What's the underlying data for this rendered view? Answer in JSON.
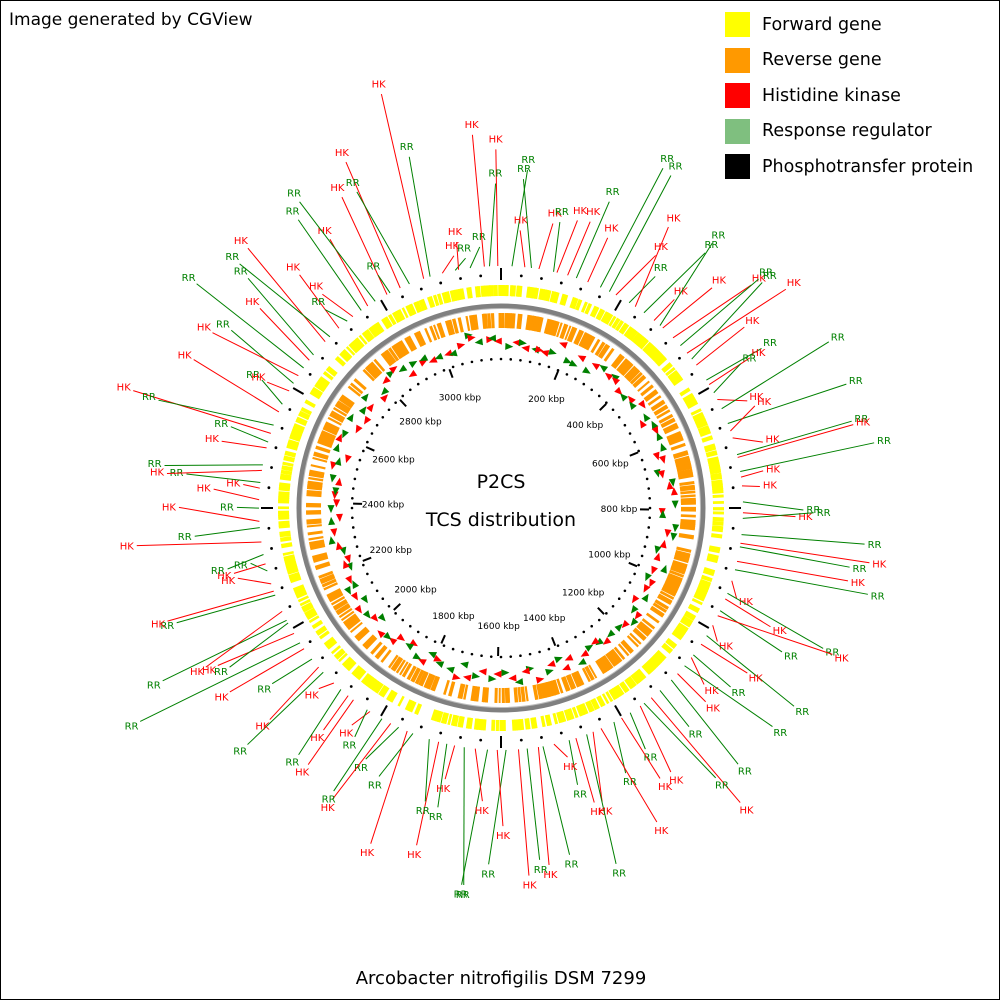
{
  "credit": "Image generated by CGView",
  "legend": [
    {
      "label": "Forward gene",
      "color": "#ffff00"
    },
    {
      "label": "Reverse gene",
      "color": "#ff9900"
    },
    {
      "label": "Histidine kinase",
      "color": "#ff0000"
    },
    {
      "label": "Response regulator",
      "color": "#7fbf7f"
    },
    {
      "label": "Phosphotransfer protein",
      "color": "#000000"
    }
  ],
  "center": {
    "line1": "P2CS",
    "line2": "TCS distribution"
  },
  "organism": "Arcobacter nitrofigilis DSM 7299",
  "map": {
    "genome_length_kbp": 3180,
    "tick_labels": [
      "200 kbp",
      "400 kbp",
      "600 kbp",
      "800 kbp",
      "1000 kbp",
      "1200 kbp",
      "1400 kbp",
      "1600 kbp",
      "1800 kbp",
      "2000 kbp",
      "2200 kbp",
      "2400 kbp",
      "2600 kbp",
      "2800 kbp",
      "3000 kbp"
    ],
    "colors": {
      "forward": "#ffff00",
      "reverse": "#ff9900",
      "hk": "#ff0000",
      "rr": "#008000",
      "backbone": "#808080",
      "ticks": "#000000"
    },
    "tcs_labels": [
      "HK",
      "RR",
      "HK",
      "RR",
      "HK",
      "RR",
      "HK",
      "HK",
      "RR",
      "HK",
      "RR",
      "RR",
      "HK",
      "RR",
      "HK",
      "RR",
      "HK",
      "RR",
      "HK",
      "HK",
      "RR",
      "HK",
      "RR",
      "HK",
      "RR",
      "HK",
      "RR",
      "HK",
      "RR",
      "RR",
      "HK",
      "HK",
      "RR",
      "HK",
      "RR",
      "HK",
      "HK",
      "RR",
      "HK",
      "RR",
      "RR",
      "HK",
      "RR",
      "HK",
      "RR",
      "HK",
      "RR",
      "HK",
      "RR",
      "HK",
      "HK",
      "RR",
      "HK",
      "RR",
      "HK",
      "RR",
      "HK",
      "RR",
      "RR",
      "HK",
      "RR",
      "HK",
      "RR",
      "HK",
      "RR",
      "HK",
      "HK",
      "RR",
      "HK",
      "RR",
      "HK",
      "RR",
      "HK",
      "RR",
      "HK",
      "RR",
      "HK",
      "RR",
      "HK",
      "RR",
      "HK",
      "RR",
      "HK",
      "RR",
      "RR",
      "HK",
      "RR",
      "HK",
      "RR",
      "HK",
      "RR",
      "HK",
      "HK",
      "RR",
      "HK",
      "RR",
      "HK",
      "RR",
      "HK",
      "RR",
      "HK",
      "RR",
      "RR",
      "HK",
      "RR",
      "HK",
      "HK",
      "RR",
      "HK",
      "RR",
      "HK",
      "RR",
      "HK",
      "RR",
      "HK",
      "HK",
      "RR",
      "HK",
      "RR",
      "HK",
      "RR",
      "HK",
      "RR",
      "HK",
      "RR",
      "HK",
      "RR",
      "HK",
      "RR",
      "HK",
      "RR",
      "HK",
      "RR",
      "HK",
      "RR",
      "HK",
      "RR",
      "HK",
      "RR",
      "HK",
      "RR",
      "HK",
      "RR",
      "HK",
      "RR",
      "HK",
      "RR",
      "HK",
      "RR",
      "HK",
      "RR"
    ]
  }
}
